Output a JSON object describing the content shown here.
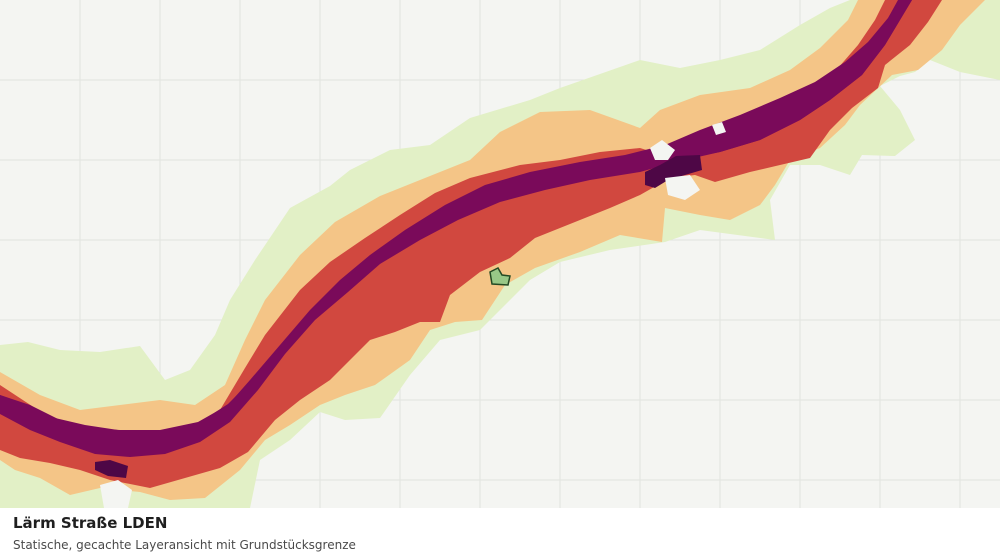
{
  "caption": {
    "title": "Lärm Straße LDEN",
    "subtitle": "Statische, gecachte Layeransicht mit Grundstücksgrenze"
  },
  "map": {
    "layer_name": "noise-road-lden",
    "colors": {
      "background": "#f4f5f2",
      "grid": "#e1e3df",
      "band_lowest": "#e2f0c6",
      "band_low": "#f4c587",
      "band_mid": "#d1483f",
      "band_high": "#7a0a5a",
      "band_highest": "#4e0746",
      "parcel_fill": "#98c887",
      "parcel_stroke": "#244a24"
    }
  }
}
